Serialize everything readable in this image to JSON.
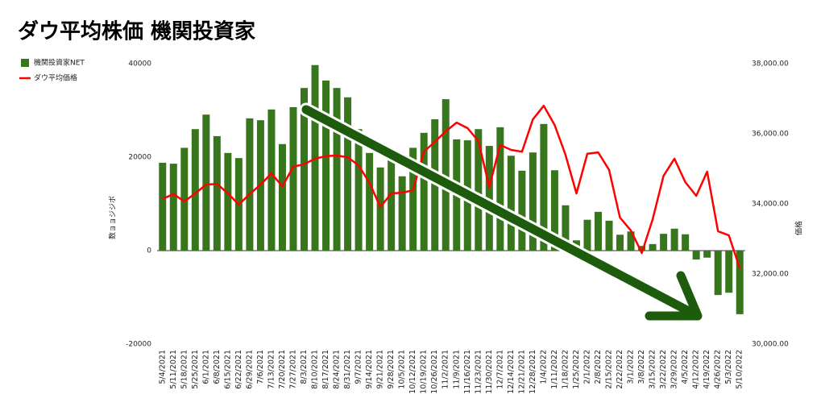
{
  "chart_data": {
    "type": "bar-line",
    "title": "ダウ平均株価 機関投資家",
    "y_label": "数ョョジジボ",
    "y2_label": "価格",
    "categories": [
      "5/4/2021",
      "5/11/2021",
      "5/18/2021",
      "5/25/2021",
      "6/1/2021",
      "6/8/2021",
      "6/15/2021",
      "6/22/2021",
      "6/29/2021",
      "7/6/2021",
      "7/13/2021",
      "7/20/2021",
      "7/27/2021",
      "8/3/2021",
      "8/10/2021",
      "8/17/2021",
      "8/24/2021",
      "8/31/2021",
      "9/7/2021",
      "9/14/2021",
      "9/21/2021",
      "9/28/2021",
      "10/5/2021",
      "10/12/2021",
      "10/19/2021",
      "10/26/2021",
      "11/2/2021",
      "11/9/2021",
      "11/16/2021",
      "11/23/2021",
      "11/30/2021",
      "12/7/2021",
      "12/14/2021",
      "12/21/2021",
      "12/28/2021",
      "1/4/2022",
      "1/11/2022",
      "1/18/2022",
      "1/25/2022",
      "2/1/2022",
      "2/8/2022",
      "2/15/2022",
      "2/22/2022",
      "3/1/2022",
      "3/8/2022",
      "3/15/2022",
      "3/22/2022",
      "3/29/2022",
      "4/5/2022",
      "4/12/2022",
      "4/19/2022",
      "4/26/2022",
      "5/3/2022",
      "5/10/2022"
    ],
    "series": [
      {
        "name": "機関投資家NET",
        "color": "#38761d",
        "kind": "bar",
        "values": [
          18800,
          18600,
          22000,
          26000,
          29100,
          24500,
          20900,
          19800,
          28300,
          27900,
          30200,
          22800,
          30700,
          34800,
          39700,
          36400,
          34800,
          32800,
          26000,
          20900,
          17800,
          19500,
          15900,
          22000,
          25200,
          28100,
          32400,
          23800,
          23600,
          26000,
          22400,
          26400,
          20300,
          17100,
          21000,
          27100,
          17200,
          9700,
          2200,
          6600,
          8300,
          6400,
          3400,
          4100,
          1000,
          1400,
          3600,
          4700,
          3500,
          -1900,
          -1500,
          -9500,
          -9000,
          -13600
        ]
      },
      {
        "name": "ダウ平均価格",
        "color": "#ff0000",
        "kind": "line",
        "axis": "y2",
        "values": [
          34140,
          34280,
          34070,
          34300,
          34550,
          34570,
          34300,
          33980,
          34280,
          34550,
          34870,
          34500,
          35060,
          35130,
          35290,
          35360,
          35380,
          35330,
          35100,
          34600,
          33910,
          34300,
          34320,
          34390,
          35490,
          35770,
          36070,
          36320,
          36160,
          35790,
          34480,
          35680,
          35540,
          35490,
          36410,
          36800,
          36250,
          35400,
          34300,
          35430,
          35470,
          34970,
          33610,
          33240,
          32600,
          33560,
          34800,
          35290,
          34620,
          34230,
          34920,
          33220,
          33100,
          32160
        ]
      }
    ],
    "ylim": [
      -20000,
      40000
    ],
    "yticks": [
      -20000,
      0,
      20000,
      40000
    ],
    "y2lim": [
      30000,
      38000
    ],
    "y2ticks": [
      {
        "value": 30000,
        "label": "30,000.00"
      },
      {
        "value": 32000,
        "label": "32,000.00"
      },
      {
        "value": 34000,
        "label": "34,000.00"
      },
      {
        "value": 36000,
        "label": "36,000.00"
      },
      {
        "value": 38000,
        "label": "38,000.00"
      }
    ],
    "legend": "left"
  }
}
